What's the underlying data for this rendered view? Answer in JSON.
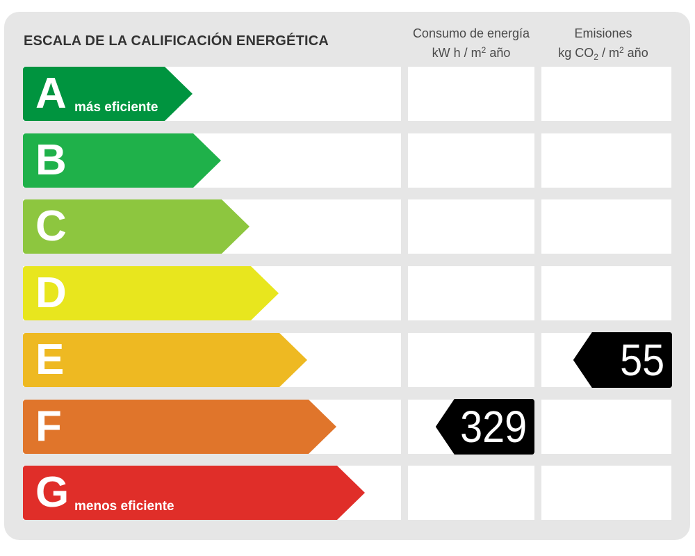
{
  "title": "ESCALA DE LA CALIFICACIÓN ENERGÉTICA",
  "columns": {
    "consumo": {
      "line1": "Consumo de energía",
      "unit_pre": "kW h  / m",
      "unit_sup": "2",
      "unit_post": " año"
    },
    "emisiones": {
      "line1": "Emisiones",
      "unit_pre": "kg CO",
      "unit_sub": "2",
      "unit_mid": "  / m",
      "unit_sup": "2",
      "unit_post": " año"
    }
  },
  "ratings": [
    {
      "letter": "A",
      "sublabel": "más eficiente",
      "color": "#00943f"
    },
    {
      "letter": "B",
      "sublabel": "",
      "color": "#1fb14a"
    },
    {
      "letter": "C",
      "sublabel": "",
      "color": "#8dc63f"
    },
    {
      "letter": "D",
      "sublabel": "",
      "color": "#e8e61e"
    },
    {
      "letter": "E",
      "sublabel": "",
      "color": "#eeb922"
    },
    {
      "letter": "F",
      "sublabel": "",
      "color": "#e0752b"
    },
    {
      "letter": "G",
      "sublabel": "menos eficiente",
      "color": "#e02e29"
    }
  ],
  "consumo_value": {
    "value": "329",
    "rating": "F"
  },
  "emisiones_value": {
    "value": "55",
    "rating": "E"
  }
}
